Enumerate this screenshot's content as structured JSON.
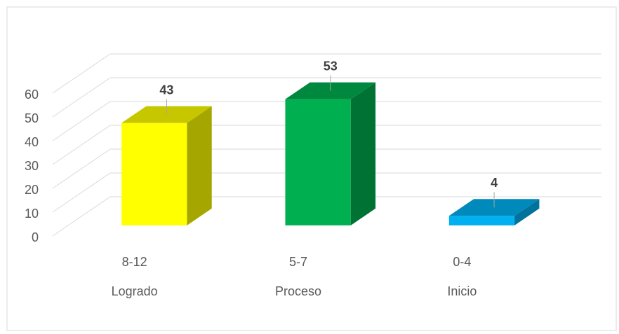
{
  "chart_data": {
    "type": "bar3d",
    "categories": [
      "8-12",
      "5-7",
      "0-4"
    ],
    "groups": [
      "Logrado",
      "Proceso",
      "Inicio"
    ],
    "values": [
      43,
      53,
      4
    ],
    "colors": [
      "#FFFF00",
      "#00B050",
      "#00B0F0"
    ],
    "ylim": [
      0,
      60
    ],
    "yticks": [
      0,
      10,
      20,
      30,
      40,
      50,
      60
    ],
    "grid": true
  }
}
